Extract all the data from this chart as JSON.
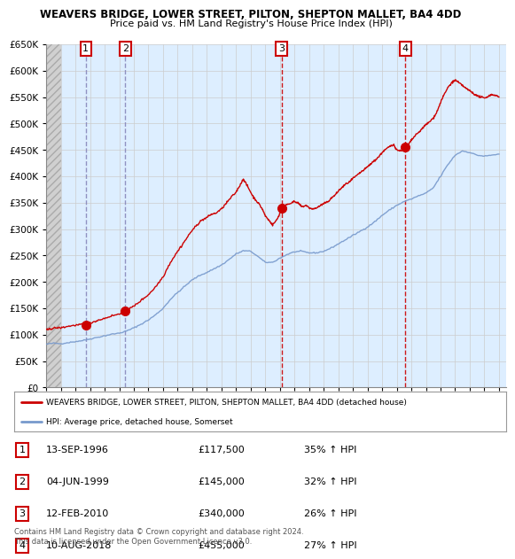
{
  "title1": "WEAVERS BRIDGE, LOWER STREET, PILTON, SHEPTON MALLET, BA4 4DD",
  "title2": "Price paid vs. HM Land Registry's House Price Index (HPI)",
  "legend_line1": "WEAVERS BRIDGE, LOWER STREET, PILTON, SHEPTON MALLET, BA4 4DD (detached house)",
  "legend_line2": "HPI: Average price, detached house, Somerset",
  "footnote": "Contains HM Land Registry data © Crown copyright and database right 2024.\nThis data is licensed under the Open Government Licence v3.0.",
  "transactions": [
    {
      "num": 1,
      "date": "13-SEP-1996",
      "price": 117500,
      "pct": "35% ↑ HPI"
    },
    {
      "num": 2,
      "date": "04-JUN-1999",
      "price": 145000,
      "pct": "32% ↑ HPI"
    },
    {
      "num": 3,
      "date": "12-FEB-2010",
      "price": 340000,
      "pct": "26% ↑ HPI"
    },
    {
      "num": 4,
      "date": "10-AUG-2018",
      "price": 455000,
      "pct": "27% ↑ HPI"
    }
  ],
  "transaction_years": [
    1996.71,
    1999.42,
    2010.12,
    2018.6
  ],
  "transaction_prices": [
    117500,
    145000,
    340000,
    455000
  ],
  "transaction_vline_colors": [
    "#aaaacc",
    "#aaaacc",
    "#cc0000",
    "#cc0000"
  ],
  "ylim": [
    0,
    650000
  ],
  "yticks": [
    0,
    50000,
    100000,
    150000,
    200000,
    250000,
    300000,
    350000,
    400000,
    450000,
    500000,
    550000,
    600000,
    650000
  ],
  "xlim": [
    1994.0,
    2025.5
  ],
  "xticks": [
    1994,
    1995,
    1996,
    1997,
    1998,
    1999,
    2000,
    2001,
    2002,
    2003,
    2004,
    2005,
    2006,
    2007,
    2008,
    2009,
    2010,
    2011,
    2012,
    2013,
    2014,
    2015,
    2016,
    2017,
    2018,
    2019,
    2020,
    2021,
    2022,
    2023,
    2024,
    2025
  ],
  "line_color_sold": "#cc0000",
  "line_color_hpi": "#7799cc",
  "dot_color": "#cc0000",
  "grid_color": "#cccccc",
  "bg_plot": "#ddeeff",
  "marker_box_color": "#cc0000",
  "hatch_color": "#bbbbbb"
}
